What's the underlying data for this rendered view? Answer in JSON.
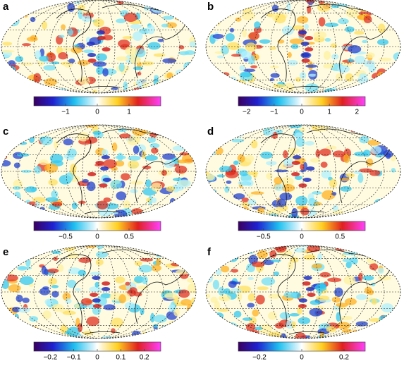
{
  "panels": [
    {
      "label": "a",
      "colorbar": {
        "lim": [
          -2,
          2
        ],
        "ticks": [
          {
            "value": -1,
            "label": "−1"
          },
          0,
          1
        ]
      }
    },
    {
      "label": "b",
      "colorbar": {
        "lim": [
          -2.3,
          2.3
        ],
        "ticks": [
          {
            "value": -2,
            "label": "−2"
          },
          {
            "value": -1,
            "label": "−1"
          },
          0,
          1,
          2
        ]
      }
    },
    {
      "label": "c",
      "colorbar": {
        "lim": [
          -1,
          1
        ],
        "ticks": [
          {
            "value": -0.5,
            "label": "−0.5"
          },
          0,
          0.5
        ]
      }
    },
    {
      "label": "d",
      "colorbar": {
        "lim": [
          -0.83,
          0.83
        ],
        "ticks": [
          {
            "value": -0.5,
            "label": "−0.5"
          },
          0,
          0.5
        ]
      }
    },
    {
      "label": "e",
      "colorbar": {
        "lim": [
          -0.27,
          0.27
        ],
        "ticks": [
          {
            "value": -0.2,
            "label": "−0.2"
          },
          {
            "value": -0.1,
            "label": "−0.1"
          },
          0,
          0.1,
          0.2
        ]
      }
    },
    {
      "label": "f",
      "colorbar": {
        "lim": [
          -0.3,
          0.3
        ],
        "ticks": [
          {
            "value": -0.2,
            "label": "−0.2"
          },
          0,
          0.2
        ]
      }
    }
  ]
}
